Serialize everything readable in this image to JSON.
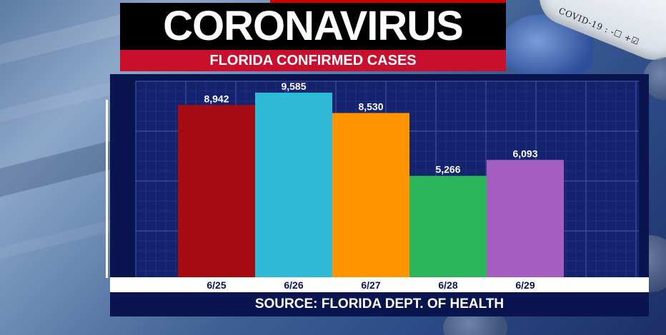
{
  "header": {
    "title": "CORONAVIRUS",
    "subtitle": "FLORIDA CONFIRMED CASES"
  },
  "decoration": {
    "tube_label": "COVID-19 : -☐ +☑"
  },
  "footer": {
    "source": "SOURCE: FLORIDA DEPT. OF HEALTH"
  },
  "chart_data": {
    "type": "bar",
    "categories": [
      "6/25",
      "6/26",
      "6/27",
      "6/28",
      "6/29"
    ],
    "values": [
      8942,
      9585,
      8530,
      5266,
      6093
    ],
    "value_labels": [
      "8,942",
      "9,585",
      "8,530",
      "5,266",
      "6,093"
    ],
    "colors": [
      "#a50b10",
      "#2fbad8",
      "#ff9300",
      "#2db55c",
      "#a55ebf"
    ],
    "title": "FLORIDA CONFIRMED CASES",
    "xlabel": "",
    "ylabel": "",
    "ylim": [
      0,
      10000
    ],
    "grid": true,
    "legend": "none"
  }
}
